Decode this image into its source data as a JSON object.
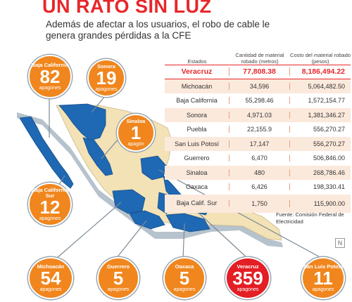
{
  "header": {
    "title": "UN RATO SIN LUZ",
    "subtitle": "Además de afectar a los usuarios, el robo de cable le genera grandes pérdidas a la CFE"
  },
  "colors": {
    "highlight": "#e8262a",
    "bubble_orange": "#f0861d",
    "bubble_red": "#e31e24",
    "map_blue": "#1f68b3",
    "map_tan": "#f3e2b6"
  },
  "chart_data": {
    "type": "table",
    "columns": [
      "Estados",
      "Cantidad de material robado (metros)",
      "Costo del material robado (pesos)"
    ],
    "rows": [
      {
        "estado": "Veracruz",
        "metros": "77,808.38",
        "pesos": "8,186,494.22",
        "highlight": true
      },
      {
        "estado": "Michoacán",
        "metros": "34,596",
        "pesos": "5,064,482.50"
      },
      {
        "estado": "Baja California",
        "metros": "55,298.46",
        "pesos": "1,572,154.77"
      },
      {
        "estado": "Sonora",
        "metros": "4,971.03",
        "pesos": "1,381,346.27"
      },
      {
        "estado": "Puebla",
        "metros": "22,155.9",
        "pesos": "556,270.27"
      },
      {
        "estado": "San Luis Potosí",
        "metros": "17,147",
        "pesos": "556,270.27"
      },
      {
        "estado": "Guerrero",
        "metros": "6,470",
        "pesos": "506,846.00"
      },
      {
        "estado": "Sinaloa",
        "metros": "480",
        "pesos": "268,786.46"
      },
      {
        "estado": "Oaxaca",
        "metros": "6,426",
        "pesos": "198,330.41"
      },
      {
        "estado": "Baja Calif. Sur",
        "metros": "1,750",
        "pesos": "115,900.00"
      }
    ],
    "source": "Fuente: Comisión Federal de Electricidad",
    "apagones": [
      {
        "estado": "Baja California",
        "count": 82,
        "unit": "apagones"
      },
      {
        "estado": "Sonora",
        "count": 19,
        "unit": "apagones"
      },
      {
        "estado": "Sinaloa",
        "count": 1,
        "unit": "apagón"
      },
      {
        "estado": "Baja California Sur",
        "count": 12,
        "unit": "apagones"
      },
      {
        "estado": "Michoacán",
        "count": 54,
        "unit": "apagones"
      },
      {
        "estado": "Guerrero",
        "count": 5,
        "unit": "apagones"
      },
      {
        "estado": "Oaxaca",
        "count": 5,
        "unit": "apagones"
      },
      {
        "estado": "Veracruz",
        "count": 359,
        "unit": "apagones",
        "highlight": true
      },
      {
        "estado": "San Luis Potosí",
        "count": 11,
        "unit": "apagones"
      }
    ]
  },
  "logo": {
    "text": "N"
  }
}
